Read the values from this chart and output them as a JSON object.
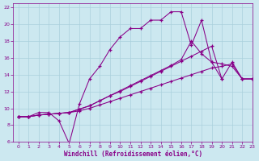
{
  "xlabel": "Windchill (Refroidissement éolien,°C)",
  "xlim": [
    -0.5,
    23
  ],
  "ylim": [
    6,
    22.5
  ],
  "xticks": [
    0,
    1,
    2,
    3,
    4,
    5,
    6,
    7,
    8,
    9,
    10,
    11,
    12,
    13,
    14,
    15,
    16,
    17,
    18,
    19,
    20,
    21,
    22,
    23
  ],
  "yticks": [
    6,
    8,
    10,
    12,
    14,
    16,
    18,
    20,
    22
  ],
  "background_color": "#cce8f0",
  "grid_color": "#aad0dc",
  "line_color": "#880088",
  "s1_x": [
    0,
    1,
    2,
    3,
    4,
    5,
    6,
    7,
    8,
    9,
    10,
    11,
    12,
    13,
    14,
    15,
    16,
    17,
    18,
    19,
    20
  ],
  "s1_y": [
    9,
    9,
    9.5,
    9.5,
    8.5,
    5.8,
    10.5,
    13.5,
    15.0,
    17.0,
    18.5,
    19.5,
    19.5,
    20.5,
    20.5,
    21.5,
    21.5,
    17.5,
    20.5,
    15.5,
    13.5
  ],
  "s2_x": [
    0,
    1,
    2,
    3,
    4,
    5,
    6,
    7,
    8,
    9,
    10,
    11,
    12,
    13,
    14,
    15,
    16,
    17,
    18,
    19,
    20,
    21,
    22,
    23
  ],
  "s2_y": [
    9,
    9,
    9.2,
    9.3,
    9.4,
    9.5,
    9.7,
    10.0,
    10.4,
    10.8,
    11.2,
    11.6,
    12.0,
    12.4,
    12.8,
    13.2,
    13.6,
    14.0,
    14.4,
    14.8,
    15.0,
    15.3,
    13.5,
    13.5
  ],
  "s3_x": [
    0,
    1,
    2,
    3,
    4,
    5,
    6,
    7,
    8,
    9,
    10,
    11,
    12,
    13,
    14,
    15,
    16,
    17,
    18,
    19,
    20,
    21,
    22,
    23
  ],
  "s3_y": [
    9,
    9,
    9.2,
    9.3,
    9.4,
    9.5,
    9.9,
    10.3,
    10.9,
    11.5,
    12.1,
    12.7,
    13.3,
    13.9,
    14.5,
    15.1,
    15.8,
    18.0,
    16.5,
    15.5,
    15.3,
    15.0,
    13.5,
    13.5
  ],
  "s4_x": [
    0,
    1,
    2,
    3,
    4,
    5,
    6,
    7,
    8,
    9,
    10,
    11,
    12,
    13,
    14,
    15,
    16,
    17,
    18,
    19,
    20,
    21,
    22,
    23
  ],
  "s4_y": [
    9,
    9,
    9.2,
    9.3,
    9.4,
    9.5,
    9.9,
    10.3,
    10.9,
    11.5,
    12.0,
    12.6,
    13.2,
    13.8,
    14.4,
    15.0,
    15.6,
    16.2,
    16.8,
    17.4,
    13.5,
    15.5,
    13.5,
    13.5
  ]
}
